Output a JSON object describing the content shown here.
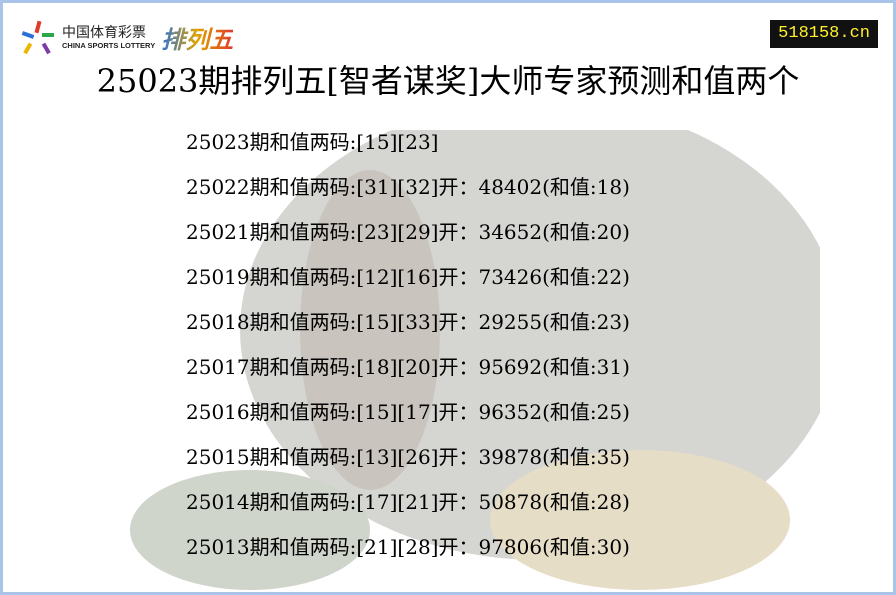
{
  "logo": {
    "cn": "中国体育彩票",
    "en": "CHINA SPORTS LOTTERY",
    "game": "排列五"
  },
  "site": "518158.cn",
  "title": "25023期排列五[智者谋奖]大师专家预测和值两个",
  "rows": [
    "25023期和值两码:[15][23]",
    "25022期和值两码:[31][32]开：48402(和值:18)",
    "25021期和值两码:[23][29]开：34652(和值:20)",
    "25019期和值两码:[12][16]开：73426(和值:22)",
    "25018期和值两码:[15][33]开：29255(和值:23)",
    "25017期和值两码:[18][20]开：95692(和值:31)",
    "25016期和值两码:[15][17]开：96352(和值:25)",
    "25015期和值两码:[13][26]开：39878(和值:35)",
    "25014期和值两码:[17][21]开：50878(和值:28)",
    "25013期和值两码:[21][28]开：97806(和值:30)"
  ]
}
